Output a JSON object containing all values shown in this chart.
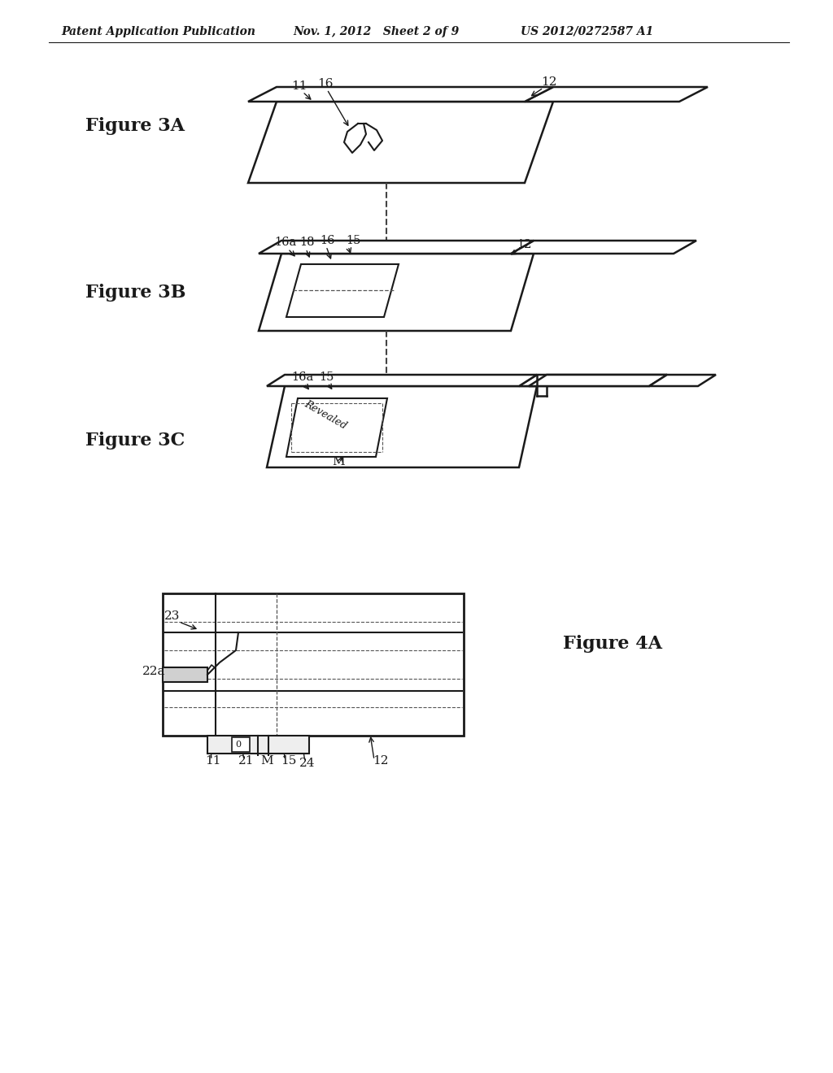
{
  "bg_color": "#ffffff",
  "header_left": "Patent Application Publication",
  "header_mid": "Nov. 1, 2012   Sheet 2 of 9",
  "header_right": "US 2012/0272587 A1",
  "fig3a_label": "Figure 3A",
  "fig3b_label": "Figure 3B",
  "fig3c_label": "Figure 3C",
  "fig4a_label": "Figure 4A",
  "line_color": "#1a1a1a",
  "dashed_color": "#333333"
}
